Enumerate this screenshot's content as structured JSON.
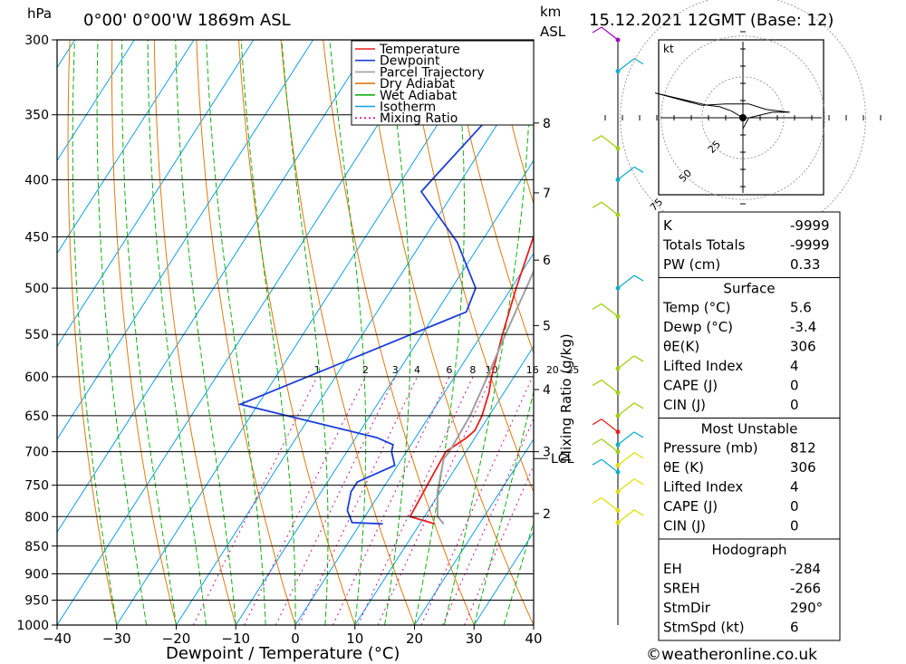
{
  "header": {
    "location": "0°00' 0°00'W 1869m ASL",
    "datetime": "15.12.2021 12GMT (Base: 12)",
    "hpa_label": "hPa",
    "km_label": "km",
    "asl_label": "ASL"
  },
  "footer": {
    "credit": "©weatheronline.co.uk"
  },
  "colors": {
    "temperature": "#e8201e",
    "dewpoint": "#1e3fd8",
    "parcel": "#a0a0a0",
    "dry_adiabat": "#e07a10",
    "wet_adiabat": "#10b010",
    "isotherm": "#10a0e8",
    "mixing_ratio": "#d0108a",
    "wind_upper": "#a010c0",
    "wind_mid": "#10b0c8",
    "wind_low": "#a0d010",
    "wind_surface": "#e0e010"
  },
  "chart_data": {
    "type": "line",
    "xlabel": "Dewpoint / Temperature (°C)",
    "ylabel": "hPa",
    "xlim": [
      -40,
      40
    ],
    "ylim": [
      1000,
      300
    ],
    "y_scale": "log",
    "x_ticks": [
      "−40",
      "−30",
      "−20",
      "−10",
      "0",
      "10",
      "20",
      "30",
      "40"
    ],
    "y_ticks": [
      300,
      350,
      400,
      450,
      500,
      550,
      600,
      650,
      700,
      750,
      800,
      850,
      900,
      950,
      1000
    ],
    "km_ticks": [
      {
        "label": "8",
        "p": 356
      },
      {
        "label": "7",
        "p": 411
      },
      {
        "label": "6",
        "p": 472
      },
      {
        "label": "5",
        "p": 540
      },
      {
        "label": "4",
        "p": 616
      },
      {
        "label": "3",
        "p": 700
      },
      {
        "label": "2",
        "p": 795
      }
    ],
    "lcl": {
      "label": "LCL",
      "p": 710
    },
    "legend": [
      "Temperature",
      "Dewpoint",
      "Parcel Trajectory",
      "Dry Adiabat",
      "Wet Adiabat",
      "Isotherm",
      "Mixing Ratio"
    ],
    "legend_position": "top-right",
    "mixing_ratio_axis_label": "Mixing Ratio (g/kg)",
    "mixing_ratio_labels": [
      "1",
      "2",
      "3",
      "4",
      "6",
      "8",
      "10",
      "16",
      "20",
      "25"
    ],
    "series": [
      {
        "name": "Temperature",
        "points": [
          [
            812,
            12.5
          ],
          [
            800,
            7.6
          ],
          [
            760,
            7.2
          ],
          [
            720,
            6.8
          ],
          [
            700,
            6.6
          ],
          [
            680,
            8.6
          ],
          [
            670,
            9.2
          ],
          [
            650,
            8.8
          ],
          [
            620,
            7.5
          ],
          [
            600,
            6.2
          ],
          [
            550,
            3.5
          ],
          [
            500,
            0.8
          ],
          [
            450,
            -1.8
          ],
          [
            415,
            -3.5
          ],
          [
            400,
            -5.3
          ],
          [
            350,
            -10.6
          ],
          [
            310,
            -14.2
          ],
          [
            300,
            -14.0
          ]
        ]
      },
      {
        "name": "Dewpoint",
        "points": [
          [
            812,
            3.8
          ],
          [
            810,
            -1.5
          ],
          [
            790,
            -3.6
          ],
          [
            760,
            -5.0
          ],
          [
            745,
            -5.0
          ],
          [
            720,
            -0.5
          ],
          [
            700,
            -2.5
          ],
          [
            690,
            -3.0
          ],
          [
            680,
            -6.5
          ],
          [
            635,
            -33.0
          ],
          [
            525,
            -5.0
          ],
          [
            500,
            -6.0
          ],
          [
            455,
            -14.0
          ],
          [
            410,
            -25.5
          ],
          [
            400,
            -25.0
          ],
          [
            350,
            -22.0
          ],
          [
            310,
            -19.5
          ],
          [
            300,
            -20.0
          ]
        ]
      },
      {
        "name": "Parcel Trajectory",
        "points": [
          [
            812,
            14.0
          ],
          [
            800,
            12.2
          ],
          [
            760,
            9.5
          ],
          [
            710,
            7.0
          ],
          [
            700,
            7.2
          ],
          [
            650,
            6.8
          ],
          [
            600,
            5.5
          ],
          [
            550,
            4.0
          ],
          [
            500,
            2.5
          ],
          [
            450,
            0.8
          ],
          [
            400,
            -1.3
          ],
          [
            350,
            -3.4
          ],
          [
            320,
            -4.2
          ]
        ]
      }
    ]
  },
  "wind_profile": [
    {
      "p": 300,
      "color": "wind_upper"
    },
    {
      "p": 320,
      "color": "wind_mid"
    },
    {
      "p": 375,
      "color": "wind_low"
    },
    {
      "p": 400,
      "color": "wind_mid"
    },
    {
      "p": 430,
      "color": "wind_low"
    },
    {
      "p": 500,
      "color": "wind_mid"
    },
    {
      "p": 530,
      "color": "wind_low"
    },
    {
      "p": 590,
      "color": "wind_low"
    },
    {
      "p": 620,
      "color": "wind_low"
    },
    {
      "p": 650,
      "color": "wind_low"
    },
    {
      "p": 672,
      "color": "temperature"
    },
    {
      "p": 690,
      "color": "wind_mid"
    },
    {
      "p": 700,
      "color": "wind_low"
    },
    {
      "p": 720,
      "color": "wind_surface"
    },
    {
      "p": 730,
      "color": "wind_mid"
    },
    {
      "p": 760,
      "color": "wind_surface"
    },
    {
      "p": 790,
      "color": "wind_surface"
    },
    {
      "p": 810,
      "color": "wind_surface"
    }
  ],
  "hodograph": {
    "unit": "kt",
    "rings": [
      "25",
      "50",
      "75"
    ],
    "trace": [
      [
        0,
        0
      ],
      [
        -4,
        5
      ],
      [
        -8,
        8
      ],
      [
        -12,
        9
      ],
      [
        -30,
        18
      ],
      [
        -14,
        9
      ],
      [
        -6,
        10
      ],
      [
        2,
        10
      ],
      [
        8,
        6
      ],
      [
        16,
        4
      ],
      [
        10,
        4
      ],
      [
        2,
        0
      ],
      [
        0,
        -8
      ]
    ]
  },
  "indices": {
    "top": [
      {
        "label": "K",
        "value": "-9999"
      },
      {
        "label": "Totals Totals",
        "value": "-9999"
      },
      {
        "label": "PW (cm)",
        "value": "0.33"
      }
    ],
    "surface_title": "Surface",
    "surface": [
      {
        "label": "Temp (°C)",
        "value": "5.6"
      },
      {
        "label": "Dewp (°C)",
        "value": "-3.4"
      },
      {
        "label": "θE(K)",
        "value": "306"
      },
      {
        "label": "Lifted Index",
        "value": "4"
      },
      {
        "label": "CAPE (J)",
        "value": "0"
      },
      {
        "label": "CIN (J)",
        "value": "0"
      }
    ],
    "unstable_title": "Most Unstable",
    "unstable": [
      {
        "label": "Pressure (mb)",
        "value": "812"
      },
      {
        "label": "θE (K)",
        "value": "306"
      },
      {
        "label": "Lifted Index",
        "value": "4"
      },
      {
        "label": "CAPE (J)",
        "value": "0"
      },
      {
        "label": "CIN (J)",
        "value": "0"
      }
    ],
    "hodo_title": "Hodograph",
    "hodo": [
      {
        "label": "EH",
        "value": "-284"
      },
      {
        "label": "SREH",
        "value": "-266"
      },
      {
        "label": "StmDir",
        "value": "290°"
      },
      {
        "label": "StmSpd (kt)",
        "value": "6"
      }
    ]
  }
}
